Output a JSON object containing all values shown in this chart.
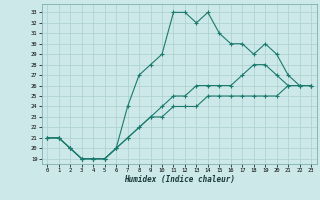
{
  "xlabel": "Humidex (Indice chaleur)",
  "bg_color": "#cce8e8",
  "grid_color": "#aacfcf",
  "line_color": "#1a7a6e",
  "xlim": [
    -0.5,
    23.5
  ],
  "ylim": [
    18.5,
    33.8
  ],
  "xticks": [
    0,
    1,
    2,
    3,
    4,
    5,
    6,
    7,
    8,
    9,
    10,
    11,
    12,
    13,
    14,
    15,
    16,
    17,
    18,
    19,
    20,
    21,
    22,
    23
  ],
  "yticks": [
    19,
    20,
    21,
    22,
    23,
    24,
    25,
    26,
    27,
    28,
    29,
    30,
    31,
    32,
    33
  ],
  "line1": [
    21,
    21,
    20,
    19,
    19,
    19,
    20,
    24,
    27,
    28,
    29,
    33,
    33,
    32,
    33,
    31,
    30,
    30,
    29,
    30,
    29,
    27,
    26,
    26
  ],
  "line2": [
    21,
    21,
    20,
    19,
    19,
    19,
    20,
    21,
    22,
    23,
    24,
    25,
    25,
    26,
    26,
    26,
    26,
    27,
    28,
    28,
    27,
    26,
    26,
    26
  ],
  "line3": [
    21,
    21,
    20,
    19,
    19,
    19,
    20,
    21,
    22,
    23,
    23,
    24,
    24,
    24,
    25,
    25,
    25,
    25,
    25,
    25,
    25,
    26,
    26,
    26
  ],
  "marker": "+"
}
